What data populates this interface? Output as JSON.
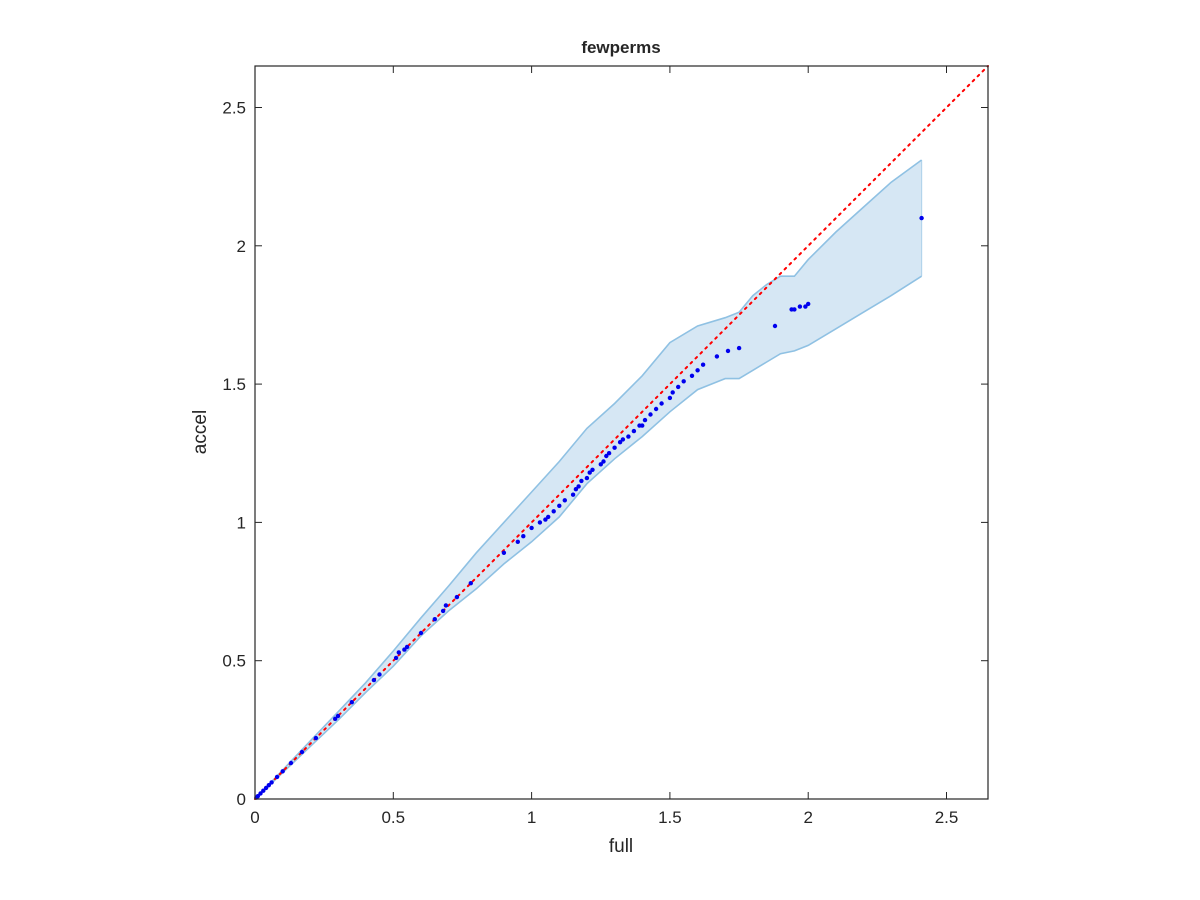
{
  "chart_data": {
    "type": "scatter",
    "title": "fewperms",
    "xlabel": "full",
    "ylabel": "accel",
    "xlim": [
      0,
      2.65
    ],
    "ylim": [
      0,
      2.65
    ],
    "xticks": [
      0,
      0.5,
      1,
      1.5,
      2,
      2.5
    ],
    "yticks": [
      0,
      0.5,
      1,
      1.5,
      2,
      2.5
    ],
    "xtick_labels": [
      "0",
      "0.5",
      "1",
      "1.5",
      "2",
      "2.5"
    ],
    "ytick_labels": [
      "0",
      "0.5",
      "1",
      "1.5",
      "2",
      "2.5"
    ],
    "grid": false,
    "colors": {
      "points": "#0000ee",
      "reference_line": "#ff0000",
      "band_fill": "#d6e7f4",
      "band_edge": "#8fc1e3",
      "axes": "#262626"
    },
    "reference_line": {
      "style": "dotted",
      "x": [
        0,
        2.65
      ],
      "y": [
        0,
        2.65
      ]
    },
    "band": {
      "x": [
        0,
        0.1,
        0.2,
        0.3,
        0.4,
        0.5,
        0.6,
        0.7,
        0.8,
        0.9,
        1.0,
        1.1,
        1.2,
        1.3,
        1.4,
        1.5,
        1.6,
        1.7,
        1.75,
        1.8,
        1.85,
        1.9,
        1.95,
        2.0,
        2.1,
        2.2,
        2.3,
        2.41
      ],
      "upper": [
        0,
        0.105,
        0.21,
        0.315,
        0.42,
        0.535,
        0.655,
        0.77,
        0.89,
        1.0,
        1.11,
        1.22,
        1.34,
        1.43,
        1.53,
        1.65,
        1.71,
        1.74,
        1.76,
        1.82,
        1.86,
        1.89,
        1.89,
        1.95,
        2.05,
        2.14,
        2.23,
        2.31
      ],
      "lower": [
        0,
        0.095,
        0.19,
        0.285,
        0.385,
        0.48,
        0.59,
        0.68,
        0.76,
        0.85,
        0.93,
        1.02,
        1.14,
        1.23,
        1.31,
        1.4,
        1.48,
        1.52,
        1.52,
        1.55,
        1.58,
        1.61,
        1.62,
        1.64,
        1.7,
        1.76,
        1.82,
        1.89
      ]
    },
    "points": {
      "x": [
        0.005,
        0.01,
        0.02,
        0.03,
        0.04,
        0.05,
        0.06,
        0.08,
        0.1,
        0.13,
        0.17,
        0.22,
        0.29,
        0.3,
        0.35,
        0.43,
        0.45,
        0.51,
        0.52,
        0.54,
        0.55,
        0.6,
        0.65,
        0.68,
        0.69,
        0.73,
        0.78,
        0.9,
        0.95,
        0.97,
        1.0,
        1.03,
        1.05,
        1.06,
        1.08,
        1.1,
        1.12,
        1.15,
        1.16,
        1.17,
        1.18,
        1.2,
        1.21,
        1.22,
        1.25,
        1.26,
        1.27,
        1.28,
        1.3,
        1.32,
        1.33,
        1.35,
        1.37,
        1.39,
        1.4,
        1.41,
        1.43,
        1.45,
        1.47,
        1.5,
        1.51,
        1.53,
        1.55,
        1.58,
        1.6,
        1.62,
        1.67,
        1.71,
        1.75,
        1.88,
        1.94,
        1.95,
        1.97,
        1.99,
        2.0,
        2.41
      ],
      "y": [
        0.005,
        0.01,
        0.02,
        0.03,
        0.04,
        0.05,
        0.06,
        0.08,
        0.1,
        0.13,
        0.17,
        0.22,
        0.29,
        0.3,
        0.35,
        0.43,
        0.45,
        0.51,
        0.53,
        0.54,
        0.55,
        0.6,
        0.65,
        0.68,
        0.7,
        0.73,
        0.78,
        0.89,
        0.93,
        0.95,
        0.98,
        1.0,
        1.01,
        1.02,
        1.04,
        1.06,
        1.08,
        1.1,
        1.12,
        1.13,
        1.15,
        1.16,
        1.18,
        1.19,
        1.21,
        1.22,
        1.24,
        1.25,
        1.27,
        1.29,
        1.3,
        1.31,
        1.33,
        1.35,
        1.35,
        1.37,
        1.39,
        1.41,
        1.43,
        1.45,
        1.47,
        1.49,
        1.51,
        1.53,
        1.55,
        1.57,
        1.6,
        1.62,
        1.63,
        1.71,
        1.77,
        1.77,
        1.78,
        1.78,
        1.79,
        2.1
      ]
    }
  }
}
